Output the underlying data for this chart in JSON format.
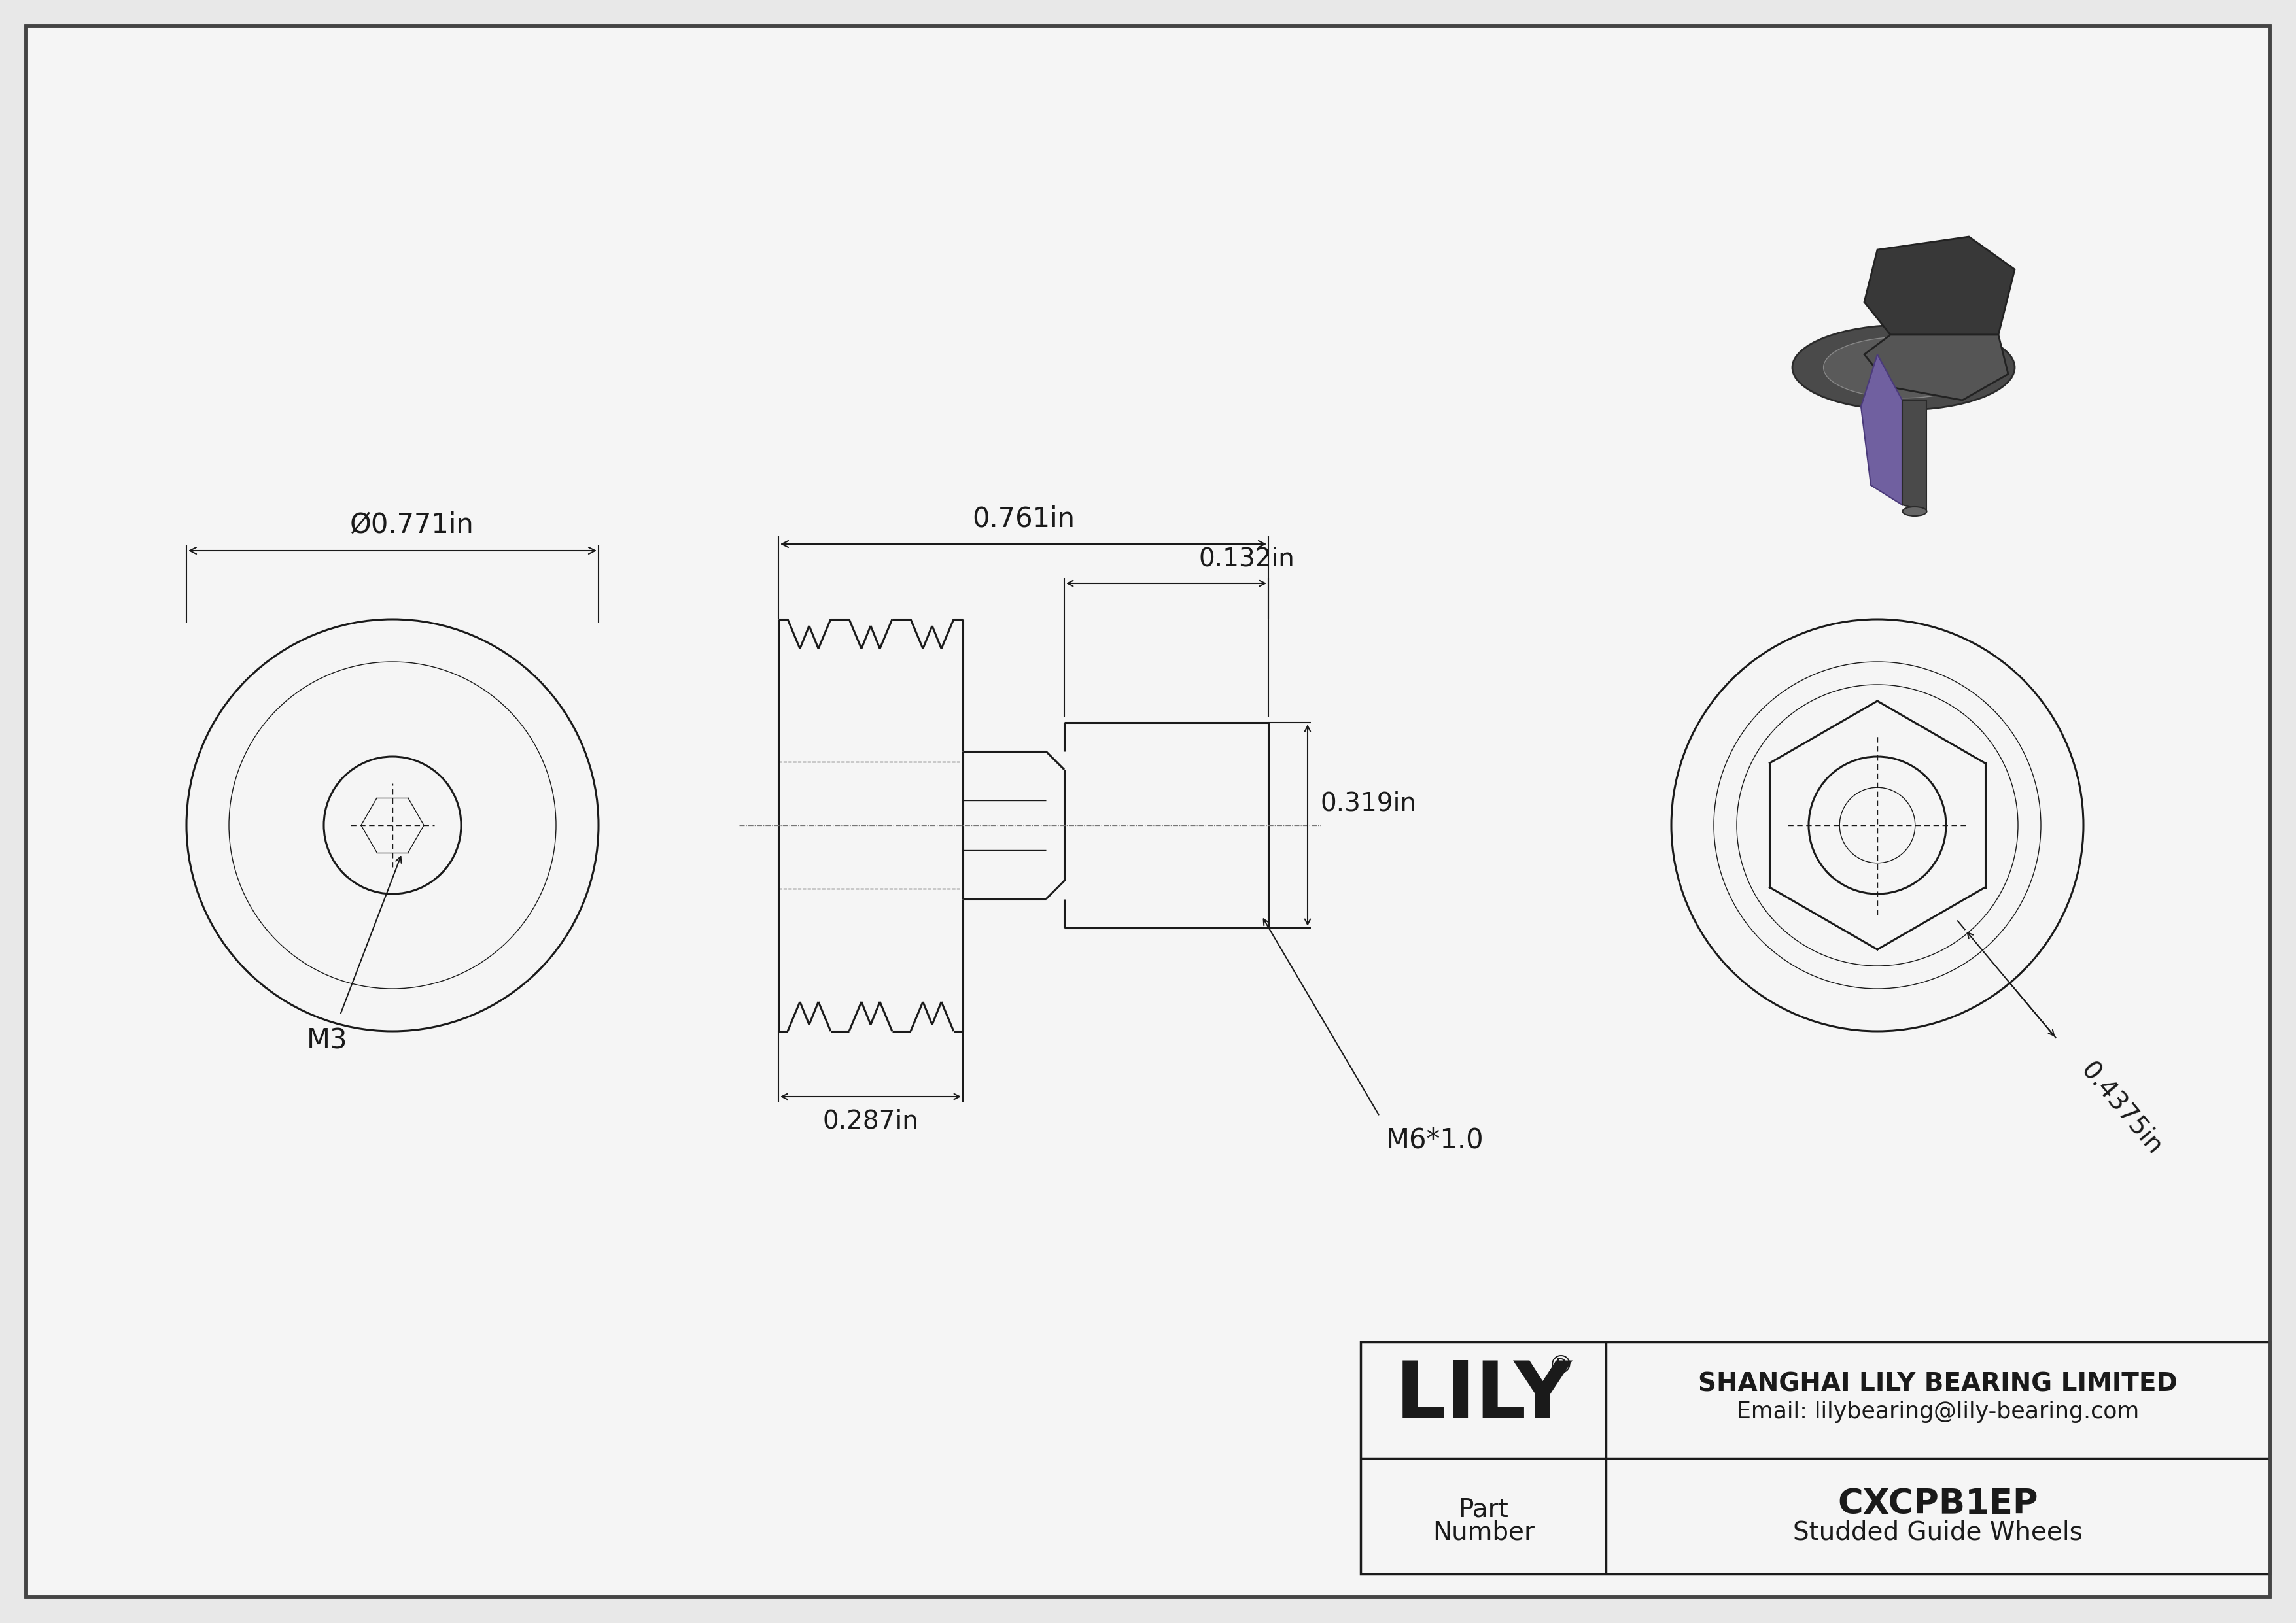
{
  "bg_color": "#e8e8e8",
  "drawing_bg": "#f5f5f5",
  "line_color": "#1a1a1a",
  "dim_color": "#1a1a1a",
  "border_color": "#444444",
  "part_number": "CXCPB1EP",
  "part_type": "Studded Guide Wheels",
  "company": "SHANGHAI LILY BEARING LIMITED",
  "email": "Email: lilybearing@lily-bearing.com",
  "logo": "LILY",
  "logo_reg": "®",
  "dim_outer_dia": "Ø0.771in",
  "dim_total_width": "0.761in",
  "dim_stud_top": "0.132in",
  "dim_hex_width": "0.319in",
  "dim_stud_len": "0.287in",
  "dim_thread": "M6*1.0",
  "dim_hex_socket": "M3",
  "dim_side_h": "0.4375in",
  "lw_main": 2.2,
  "lw_thin": 1.0,
  "lw_dim": 1.5,
  "lw_border": 4.0,
  "lw_heavy": 2.5
}
